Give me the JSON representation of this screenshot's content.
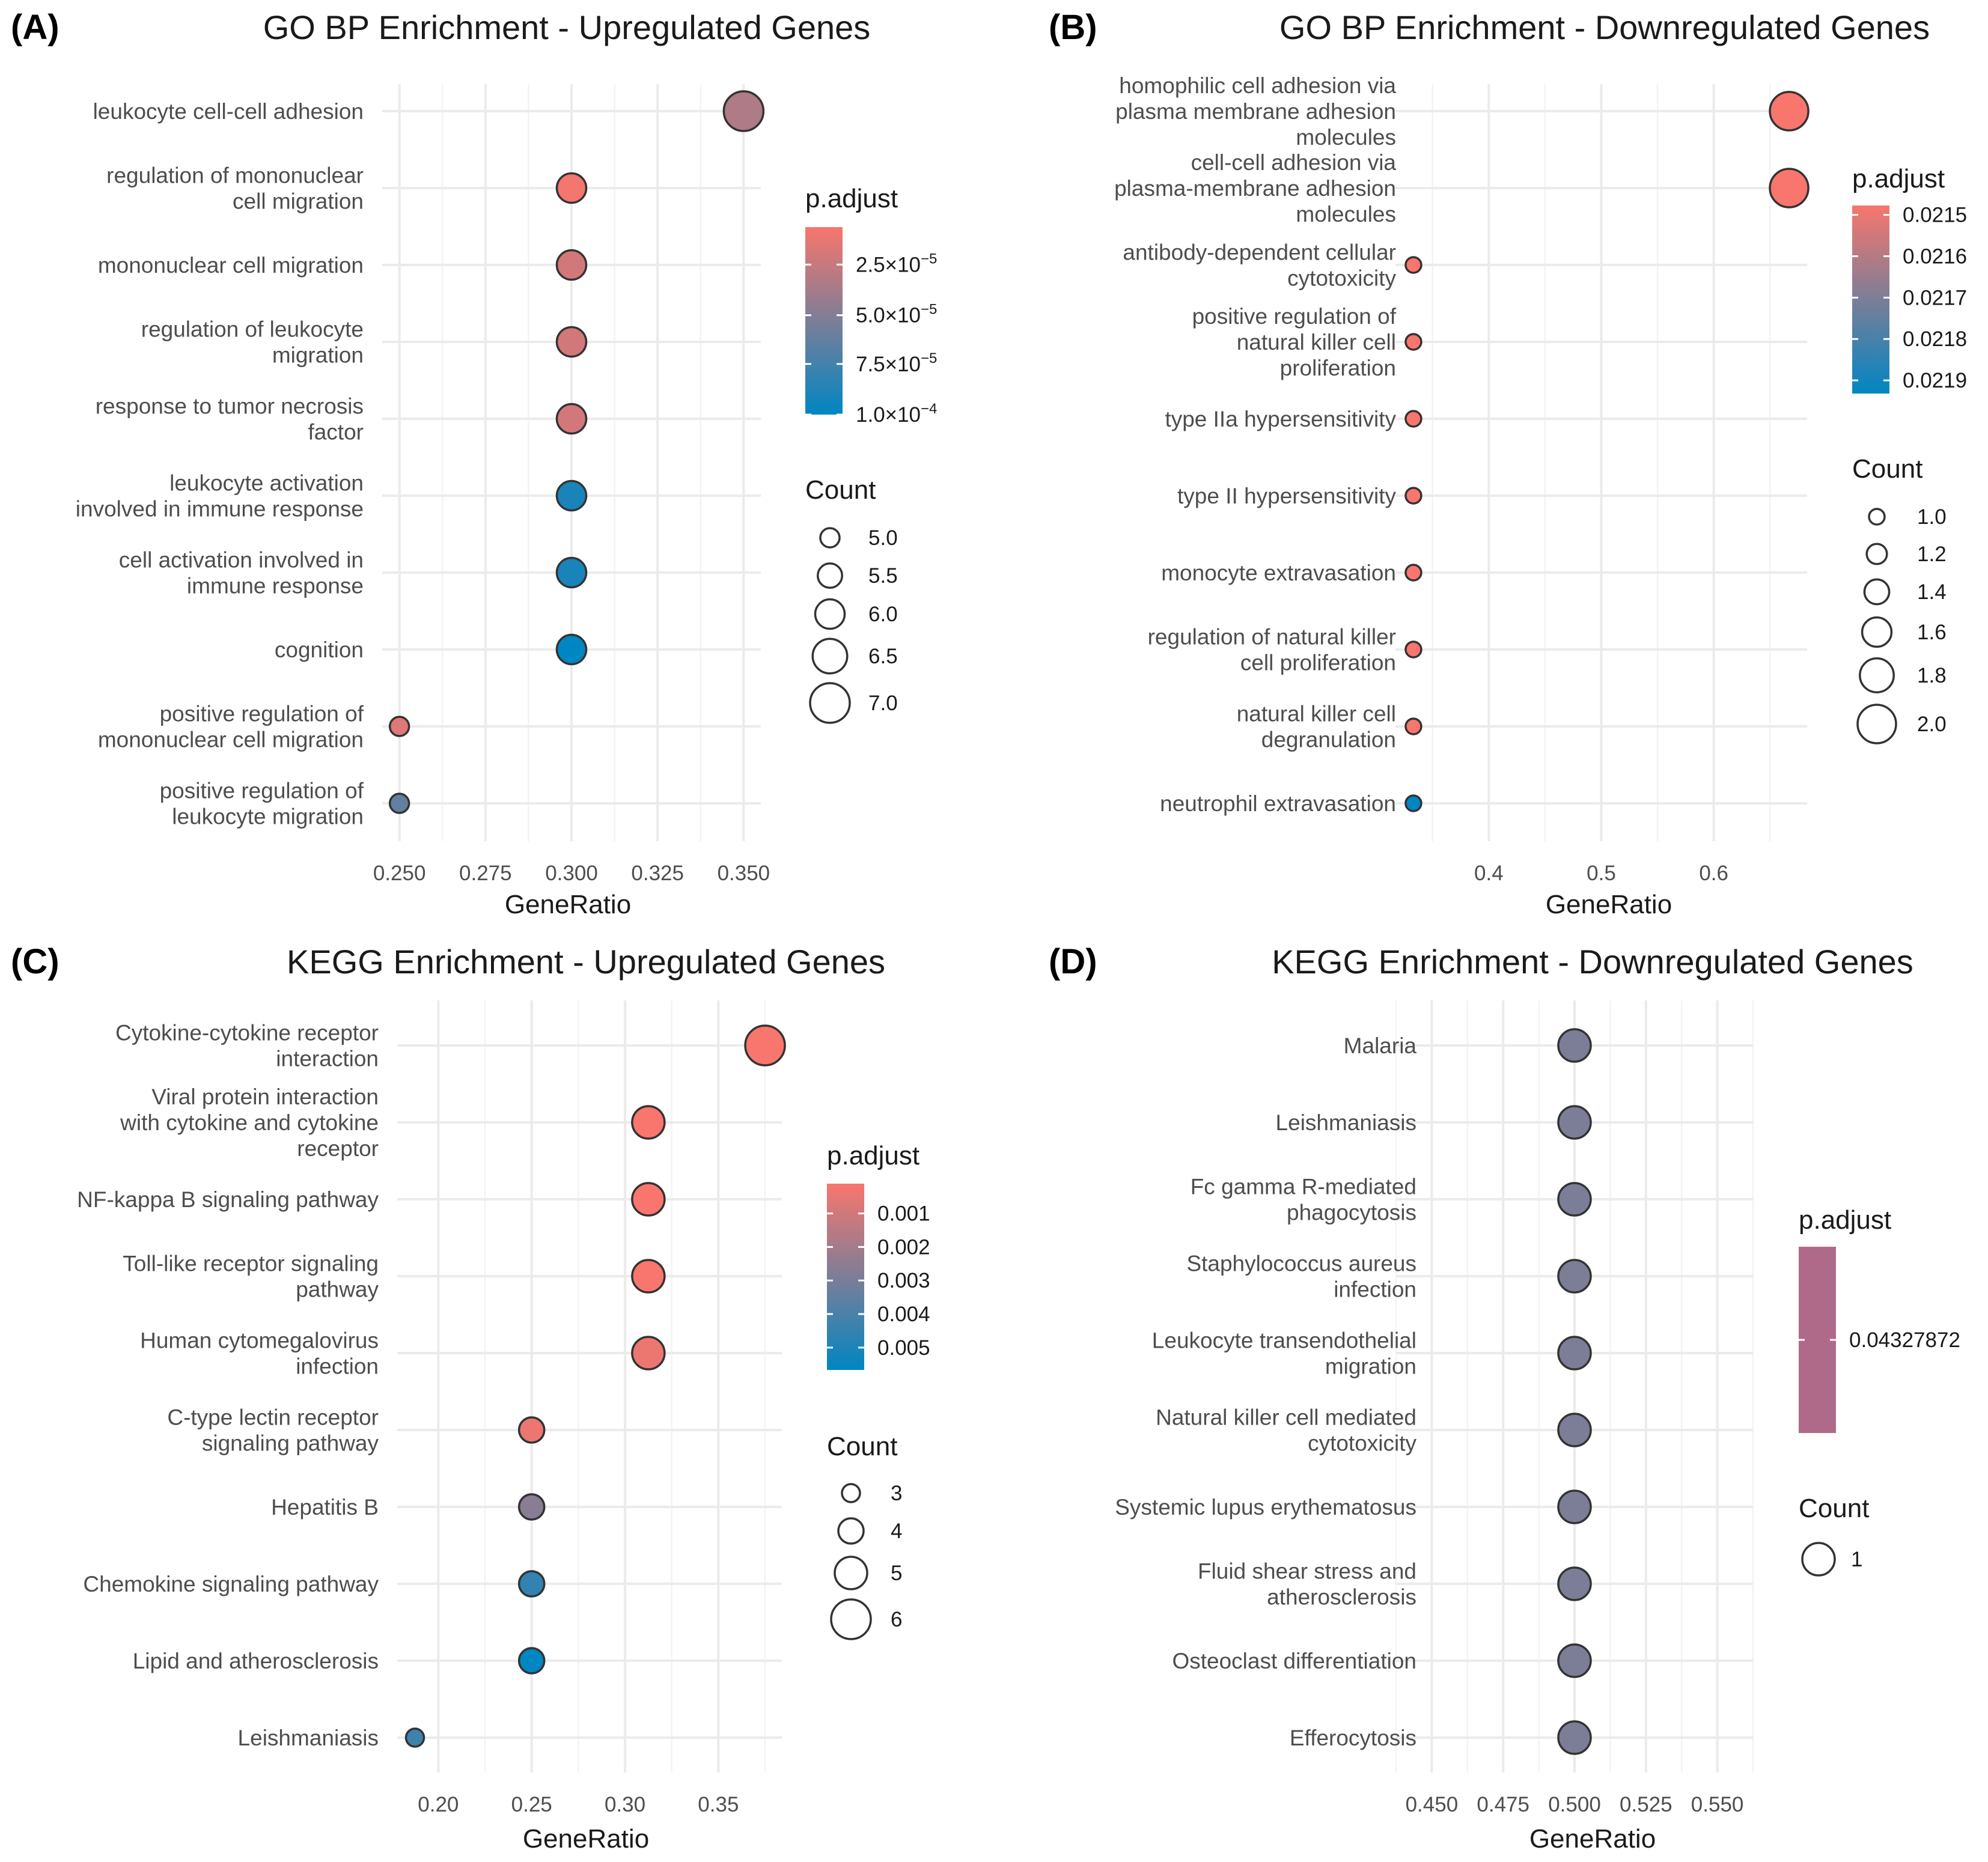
{
  "colors": {
    "low": "#F8766D",
    "high": "#0086C2",
    "mid": "#B06A89"
  },
  "chart_data": [
    {
      "panel": "(A)",
      "type": "scatter",
      "title": "GO BP Enrichment - Upregulated Genes",
      "xlabel": "GeneRatio",
      "xlim": [
        0.245,
        0.355
      ],
      "xticks": [
        0.25,
        0.275,
        0.3,
        0.325,
        0.35
      ],
      "xtick_labels": [
        "0.250",
        "0.275",
        "0.300",
        "0.325",
        "0.350"
      ],
      "terms": [
        {
          "label": [
            "leukocyte cell-cell adhesion"
          ],
          "gene_ratio": 0.35,
          "count": 7,
          "color_t": 0.3
        },
        {
          "label": [
            "regulation of mononuclear",
            "cell migration"
          ],
          "gene_ratio": 0.3,
          "count": 6,
          "color_t": 0.02
        },
        {
          "label": [
            "mononuclear cell migration"
          ],
          "gene_ratio": 0.3,
          "count": 6,
          "color_t": 0.15
        },
        {
          "label": [
            "regulation of leukocyte",
            "migration"
          ],
          "gene_ratio": 0.3,
          "count": 6,
          "color_t": 0.15
        },
        {
          "label": [
            "response to tumor necrosis",
            "factor"
          ],
          "gene_ratio": 0.3,
          "count": 6,
          "color_t": 0.15
        },
        {
          "label": [
            "leukocyte activation",
            "involved in immune response"
          ],
          "gene_ratio": 0.3,
          "count": 6,
          "color_t": 0.9
        },
        {
          "label": [
            "cell activation involved in",
            "immune response"
          ],
          "gene_ratio": 0.3,
          "count": 6,
          "color_t": 0.9
        },
        {
          "label": [
            "cognition"
          ],
          "gene_ratio": 0.3,
          "count": 6,
          "color_t": 1.0
        },
        {
          "label": [
            "positive regulation of",
            "mononuclear cell migration"
          ],
          "gene_ratio": 0.25,
          "count": 5,
          "color_t": 0.1
        },
        {
          "label": [
            "positive regulation of",
            "leukocyte migration"
          ],
          "gene_ratio": 0.25,
          "count": 5,
          "color_t": 0.6
        }
      ],
      "legend_color": {
        "title": "p.adjust",
        "labels": [
          [
            "2.5",
            "−5"
          ],
          [
            "5.0",
            "−5"
          ],
          [
            "7.5",
            "−5"
          ],
          [
            "1.0",
            "−4"
          ]
        ],
        "label_t": [
          0.2,
          0.47,
          0.73,
          1.0
        ]
      },
      "legend_size": {
        "title": "Count",
        "labels": [
          "5.0",
          "5.5",
          "6.0",
          "6.5",
          "7.0"
        ],
        "counts": [
          5,
          5.5,
          6,
          6.5,
          7
        ]
      }
    },
    {
      "panel": "(B)",
      "type": "scatter",
      "title": "GO BP Enrichment - Downregulated Genes",
      "xlabel": "GeneRatio",
      "xlim": [
        0.317,
        0.683
      ],
      "xticks": [
        0.4,
        0.5,
        0.6
      ],
      "xtick_labels": [
        "0.4",
        "0.5",
        "0.6"
      ],
      "terms": [
        {
          "label": [
            "homophilic cell adhesion via",
            "plasma membrane adhesion",
            "molecules"
          ],
          "gene_ratio": 0.667,
          "count": 2,
          "color_t": 0.0
        },
        {
          "label": [
            "cell-cell adhesion via",
            "plasma-membrane adhesion",
            "molecules"
          ],
          "gene_ratio": 0.667,
          "count": 2,
          "color_t": 0.0
        },
        {
          "label": [
            "antibody-dependent cellular",
            "cytotoxicity"
          ],
          "gene_ratio": 0.333,
          "count": 1,
          "color_t": 0.0
        },
        {
          "label": [
            "positive regulation of",
            "natural killer cell",
            "proliferation"
          ],
          "gene_ratio": 0.333,
          "count": 1,
          "color_t": 0.0
        },
        {
          "label": [
            "type IIa hypersensitivity"
          ],
          "gene_ratio": 0.333,
          "count": 1,
          "color_t": 0.0
        },
        {
          "label": [
            "type II hypersensitivity"
          ],
          "gene_ratio": 0.333,
          "count": 1,
          "color_t": 0.0
        },
        {
          "label": [
            "monocyte extravasation"
          ],
          "gene_ratio": 0.333,
          "count": 1,
          "color_t": 0.0
        },
        {
          "label": [
            "regulation of natural killer",
            "cell proliferation"
          ],
          "gene_ratio": 0.333,
          "count": 1,
          "color_t": 0.0
        },
        {
          "label": [
            "natural killer cell",
            "degranulation"
          ],
          "gene_ratio": 0.333,
          "count": 1,
          "color_t": 0.0
        },
        {
          "label": [
            "neutrophil extravasation"
          ],
          "gene_ratio": 0.333,
          "count": 1,
          "color_t": 1.0
        }
      ],
      "legend_color": {
        "title": "p.adjust",
        "labels": [
          "0.0215",
          "0.0216",
          "0.0217",
          "0.0218",
          "0.0219"
        ],
        "label_t": [
          0.05,
          0.27,
          0.49,
          0.71,
          0.93
        ]
      },
      "legend_size": {
        "title": "Count",
        "labels": [
          "1.0",
          "1.2",
          "1.4",
          "1.6",
          "1.8",
          "2.0"
        ],
        "counts": [
          1,
          1.2,
          1.4,
          1.6,
          1.8,
          2
        ]
      }
    },
    {
      "panel": "(C)",
      "type": "scatter",
      "title": "KEGG Enrichment - Upregulated Genes",
      "xlabel": "GeneRatio",
      "xlim": [
        0.178,
        0.384
      ],
      "xticks": [
        0.2,
        0.25,
        0.3,
        0.35
      ],
      "xtick_labels": [
        "0.20",
        "0.25",
        "0.30",
        "0.35"
      ],
      "terms": [
        {
          "label": [
            "Cytokine-cytokine receptor",
            "interaction"
          ],
          "gene_ratio": 0.375,
          "count": 6,
          "color_t": 0.0
        },
        {
          "label": [
            "Viral protein interaction",
            "with cytokine and cytokine",
            "receptor"
          ],
          "gene_ratio": 0.3125,
          "count": 5,
          "color_t": 0.0
        },
        {
          "label": [
            "NF-kappa B signaling pathway"
          ],
          "gene_ratio": 0.3125,
          "count": 5,
          "color_t": 0.0
        },
        {
          "label": [
            "Toll-like receptor signaling",
            "pathway"
          ],
          "gene_ratio": 0.3125,
          "count": 5,
          "color_t": 0.0
        },
        {
          "label": [
            "Human cytomegalovirus",
            "infection"
          ],
          "gene_ratio": 0.3125,
          "count": 5,
          "color_t": 0.05
        },
        {
          "label": [
            "C-type lectin receptor",
            "signaling pathway"
          ],
          "gene_ratio": 0.25,
          "count": 4,
          "color_t": 0.05
        },
        {
          "label": [
            "Hepatitis B"
          ],
          "gene_ratio": 0.25,
          "count": 4,
          "color_t": 0.45
        },
        {
          "label": [
            "Chemokine signaling pathway"
          ],
          "gene_ratio": 0.25,
          "count": 4,
          "color_t": 0.8
        },
        {
          "label": [
            "Lipid and atherosclerosis"
          ],
          "gene_ratio": 0.25,
          "count": 4,
          "color_t": 1.0
        },
        {
          "label": [
            "Leishmaniasis"
          ],
          "gene_ratio": 0.1875,
          "count": 3,
          "color_t": 0.75
        }
      ],
      "legend_color": {
        "title": "p.adjust",
        "labels": [
          "0.001",
          "0.002",
          "0.003",
          "0.004",
          "0.005"
        ],
        "label_t": [
          0.16,
          0.34,
          0.52,
          0.7,
          0.88
        ]
      },
      "legend_size": {
        "title": "Count",
        "labels": [
          "3",
          "4",
          "5",
          "6"
        ],
        "counts": [
          3,
          4,
          5,
          6
        ]
      }
    },
    {
      "panel": "(D)",
      "type": "scatter",
      "title": "KEGG Enrichment - Downregulated Genes",
      "xlabel": "GeneRatio",
      "xlim": [
        0.4375,
        0.5625
      ],
      "xticks": [
        0.45,
        0.475,
        0.5,
        0.525,
        0.55
      ],
      "xtick_labels": [
        "0.450",
        "0.475",
        "0.500",
        "0.525",
        "0.550"
      ],
      "terms": [
        {
          "label": [
            "Malaria"
          ],
          "gene_ratio": 0.5,
          "count": 1,
          "color_t": 0.5
        },
        {
          "label": [
            "Leishmaniasis"
          ],
          "gene_ratio": 0.5,
          "count": 1,
          "color_t": 0.5
        },
        {
          "label": [
            "Fc gamma R-mediated",
            "phagocytosis"
          ],
          "gene_ratio": 0.5,
          "count": 1,
          "color_t": 0.5
        },
        {
          "label": [
            "Staphylococcus aureus",
            "infection"
          ],
          "gene_ratio": 0.5,
          "count": 1,
          "color_t": 0.5
        },
        {
          "label": [
            "Leukocyte transendothelial",
            "migration"
          ],
          "gene_ratio": 0.5,
          "count": 1,
          "color_t": 0.5
        },
        {
          "label": [
            "Natural killer cell mediated",
            "cytotoxicity"
          ],
          "gene_ratio": 0.5,
          "count": 1,
          "color_t": 0.5
        },
        {
          "label": [
            "Systemic lupus erythematosus"
          ],
          "gene_ratio": 0.5,
          "count": 1,
          "color_t": 0.5
        },
        {
          "label": [
            "Fluid shear stress and",
            "atherosclerosis"
          ],
          "gene_ratio": 0.5,
          "count": 1,
          "color_t": 0.5
        },
        {
          "label": [
            "Osteoclast differentiation"
          ],
          "gene_ratio": 0.5,
          "count": 1,
          "color_t": 0.5
        },
        {
          "label": [
            "Efferocytosis"
          ],
          "gene_ratio": 0.5,
          "count": 1,
          "color_t": 0.5
        }
      ],
      "legend_color": {
        "title": "p.adjust",
        "labels": [
          "0.04327872"
        ],
        "label_t": [
          0.5
        ],
        "single": true
      },
      "legend_size": {
        "title": "Count",
        "labels": [
          "1"
        ],
        "counts": [
          1
        ]
      }
    }
  ]
}
